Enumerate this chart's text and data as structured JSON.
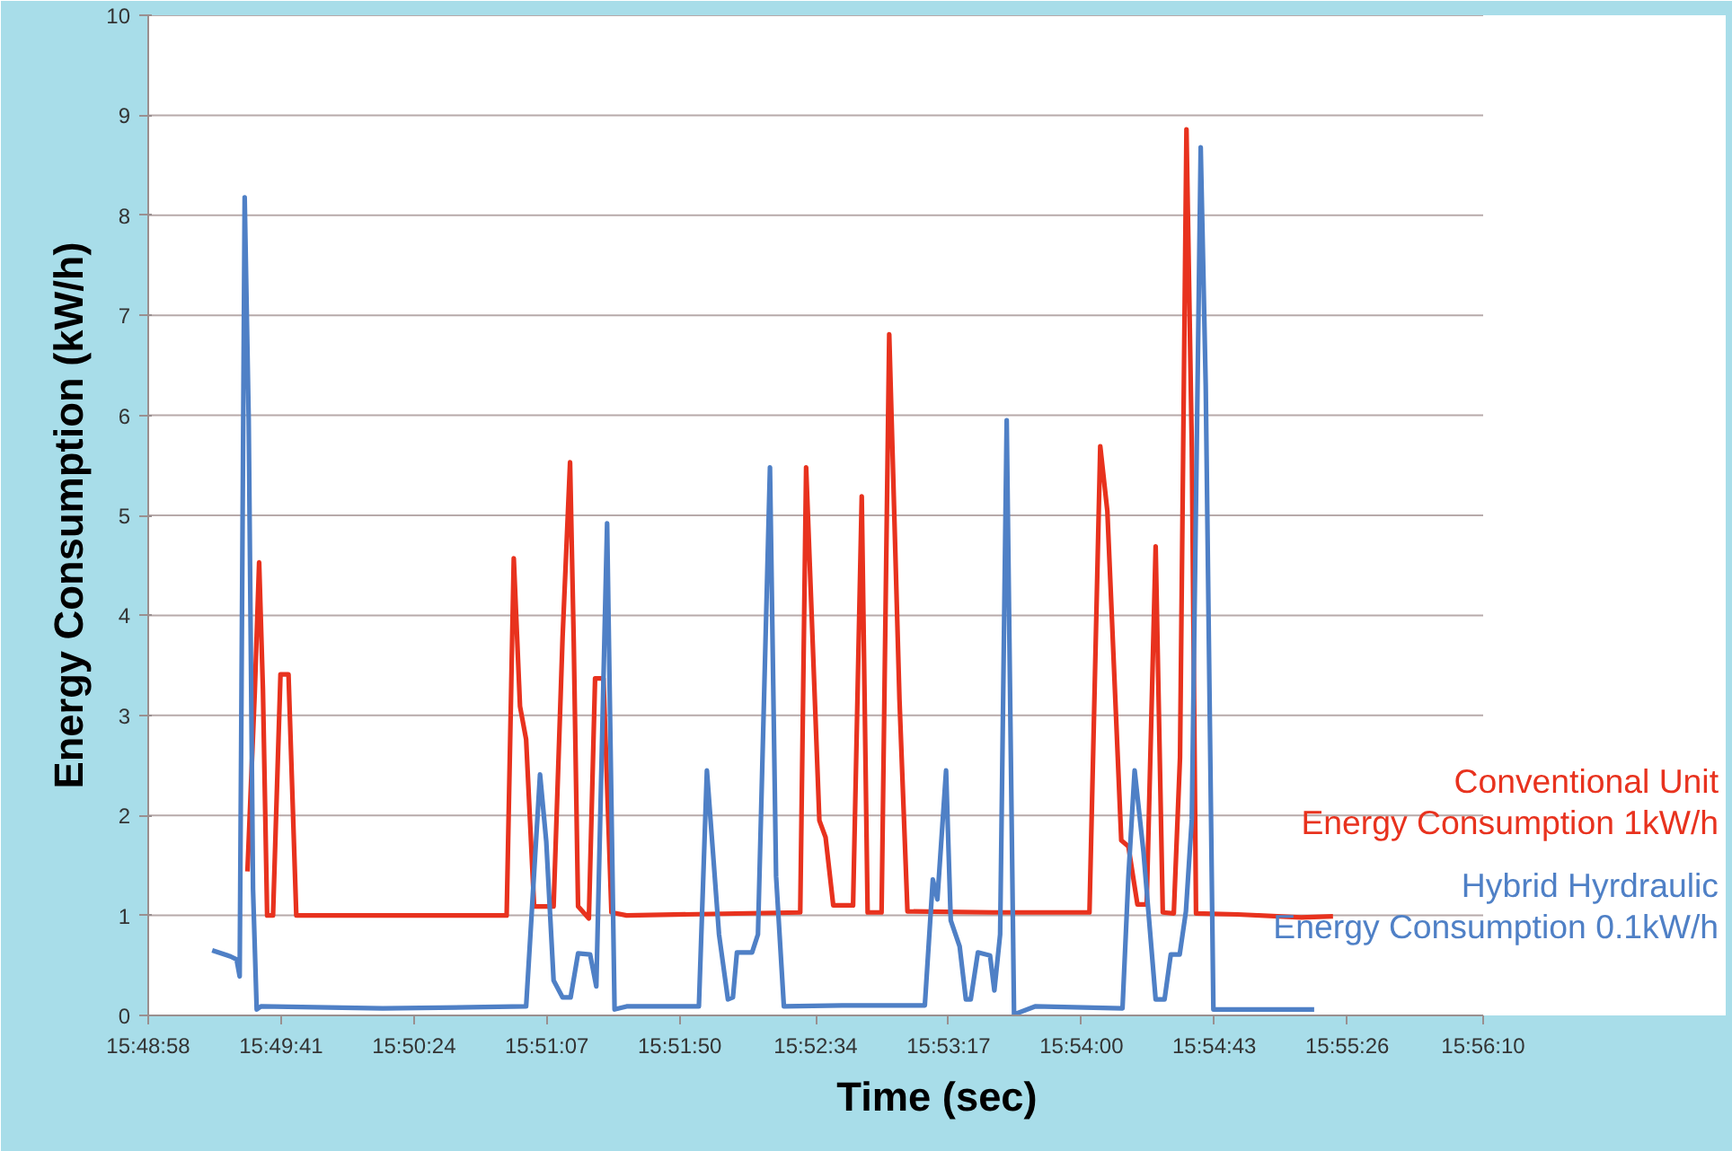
{
  "chart_data": {
    "type": "line",
    "xlabel": "Time (sec)",
    "ylabel": "Energy Consumption (kW/h)",
    "xlim": [
      15.81611,
      15.93611
    ],
    "ylim": [
      0,
      10
    ],
    "xticks": [
      {
        "value": 15.81611,
        "label": "15:48:58"
      },
      {
        "value": 15.82806,
        "label": "15:49:41"
      },
      {
        "value": 15.84,
        "label": "15:50:24"
      },
      {
        "value": 15.85194,
        "label": "15:51:07"
      },
      {
        "value": 15.86389,
        "label": "15:51:50"
      },
      {
        "value": 15.87611,
        "label": "15:52:34"
      },
      {
        "value": 15.88806,
        "label": "15:53:17"
      },
      {
        "value": 15.9,
        "label": "15:54:00"
      },
      {
        "value": 15.91194,
        "label": "15:54:43"
      },
      {
        "value": 15.92389,
        "label": "15:55:26"
      },
      {
        "value": 15.93611,
        "label": "15:56:10"
      }
    ],
    "yticks": [
      0,
      1,
      2,
      3,
      4,
      5,
      6,
      7,
      8,
      9,
      10
    ],
    "grid": "y",
    "legend": false,
    "marker": "none",
    "line_style": "solid",
    "series": [
      {
        "name": "Conventional Unit\nEnergy Consumption 1kW/h",
        "color": "#e8321e",
        "x": [
          15.82503,
          15.82569,
          15.82608,
          15.82642,
          15.8268,
          15.82733,
          15.828,
          15.82872,
          15.82942,
          15.84833,
          15.84897,
          15.84953,
          15.85008,
          15.8508,
          15.85255,
          15.85336,
          15.85403,
          15.85436,
          15.85475,
          15.85572,
          15.85628,
          15.85703,
          15.85775,
          15.85911,
          15.87472,
          15.87525,
          15.87644,
          15.877,
          15.87769,
          15.87947,
          15.88025,
          15.88078,
          15.88203,
          15.88272,
          15.88364,
          15.88436,
          15.89205,
          15.90072,
          15.90169,
          15.90233,
          15.90358,
          15.90422,
          15.90503,
          15.90586,
          15.90667,
          15.90731,
          15.9083,
          15.90886,
          15.90944,
          15.90992,
          15.9103,
          15.91403,
          15.91975,
          15.92261
        ],
        "values": [
          1.44,
          3.24,
          4.53,
          3.26,
          1.0,
          1.0,
          3.41,
          3.41,
          1.0,
          1.0,
          4.57,
          3.09,
          2.76,
          1.09,
          1.09,
          3.79,
          5.53,
          3.74,
          1.09,
          0.97,
          3.37,
          3.37,
          1.03,
          1.0,
          1.03,
          5.48,
          1.95,
          1.78,
          1.1,
          1.1,
          5.19,
          1.03,
          1.03,
          6.81,
          3.16,
          1.04,
          1.03,
          1.03,
          5.69,
          5.04,
          1.75,
          1.69,
          1.11,
          1.11,
          4.69,
          1.03,
          1.02,
          2.58,
          8.86,
          5.68,
          1.02,
          1.01,
          0.98,
          0.99
        ]
      },
      {
        "name": "Hybrid Hyrdraulic\nEnergy Consumption 0.1kW/h",
        "color": "#4f80c6",
        "x": [
          15.82186,
          15.8235,
          15.82405,
          15.82433,
          15.82478,
          15.82514,
          15.82553,
          15.82586,
          15.82625,
          15.83719,
          15.85008,
          15.85133,
          15.85189,
          15.85255,
          15.85336,
          15.85408,
          15.85475,
          15.85583,
          15.85639,
          15.85736,
          15.85803,
          15.85911,
          15.86497,
          15.86561,
          15.86633,
          15.86742,
          15.86822,
          15.86867,
          15.86903,
          15.87039,
          15.87092,
          15.872,
          15.87255,
          15.87325,
          15.8785,
          15.88592,
          15.88664,
          15.88705,
          15.88783,
          15.88825,
          15.88905,
          15.88961,
          15.89005,
          15.89069,
          15.89178,
          15.89217,
          15.89269,
          15.89328,
          15.89394,
          15.89583,
          15.90369,
          15.90422,
          15.90478,
          15.90558,
          15.90667,
          15.90747,
          15.90803,
          15.90883,
          15.90939,
          15.90992,
          15.91072,
          15.91117,
          15.91186,
          15.91347,
          15.92092
        ],
        "values": [
          0.65,
          0.59,
          0.56,
          0.39,
          8.18,
          5.97,
          1.26,
          0.06,
          0.09,
          0.07,
          0.09,
          2.41,
          1.74,
          0.35,
          0.18,
          0.18,
          0.62,
          0.61,
          0.29,
          4.92,
          0.06,
          0.09,
          0.09,
          0.09,
          2.45,
          0.81,
          0.16,
          0.18,
          0.63,
          0.63,
          0.81,
          5.48,
          1.39,
          0.09,
          0.1,
          0.1,
          1.36,
          1.16,
          2.45,
          0.95,
          0.69,
          0.16,
          0.16,
          0.63,
          0.6,
          0.25,
          0.81,
          5.95,
          0.01,
          0.09,
          0.07,
          1.39,
          2.45,
          1.63,
          0.16,
          0.16,
          0.61,
          0.61,
          1.04,
          1.96,
          8.68,
          6.3,
          0.06,
          0.06,
          0.06
        ]
      }
    ]
  }
}
